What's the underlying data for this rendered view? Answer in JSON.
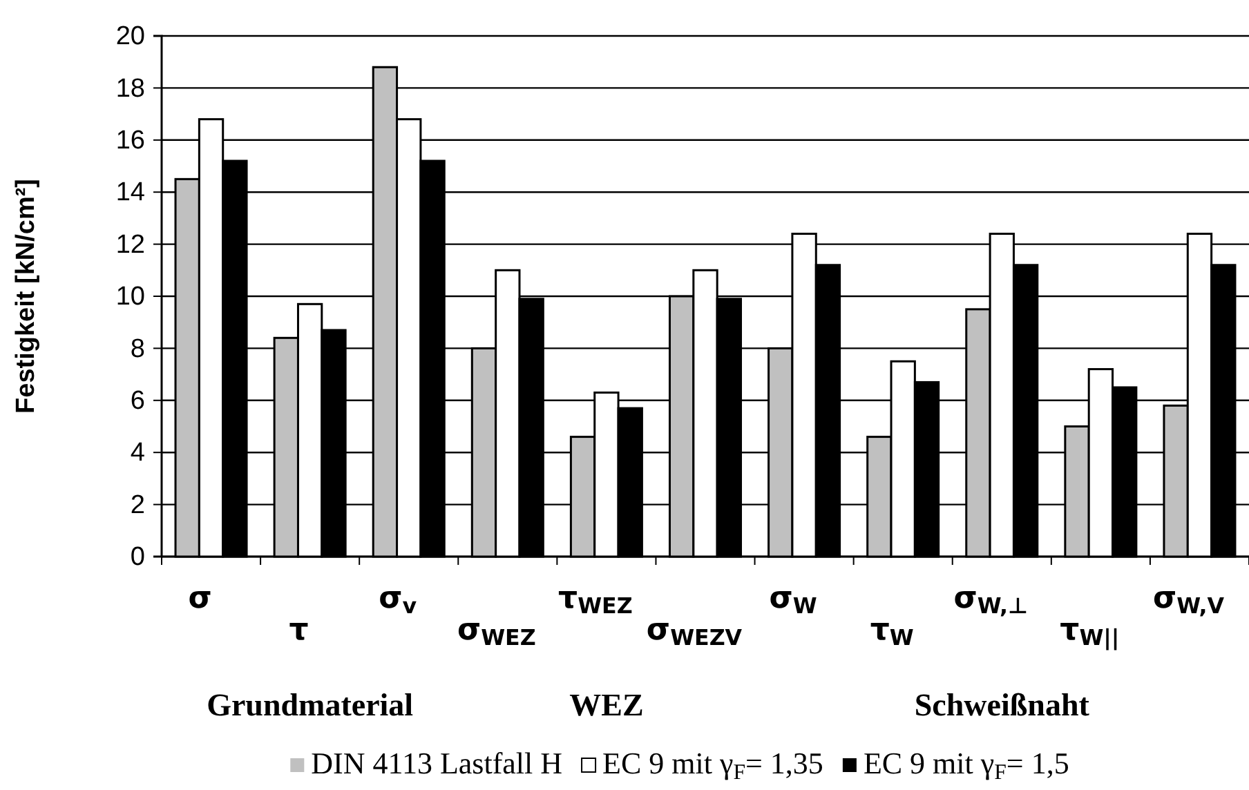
{
  "chart_data": {
    "type": "bar",
    "ylabel": "Festigkeit [kN/cm²]",
    "categories": [
      "σ",
      "τ",
      "σ$_{v}$",
      "σ$_{WEZ}$",
      "τ$_{WEZ}$",
      "σ$_{WEZV}$",
      "σ$_{W}$",
      "τ$_{W}$",
      "σ$_{W,⊥}$",
      "τ$_{W||}$",
      "σ$_{W,V}$"
    ],
    "series": [
      {
        "name": "DIN 4113 Lastfall H",
        "color": "#c0c0c0",
        "values": [
          14.5,
          8.4,
          18.8,
          8.0,
          4.6,
          10.0,
          8.0,
          4.6,
          9.5,
          5.0,
          5.8
        ]
      },
      {
        "name": "EC 9 mit γ$_{F}$= 1,35",
        "color": "#ffffff",
        "values": [
          16.8,
          9.7,
          16.8,
          11.0,
          6.3,
          11.0,
          12.4,
          7.5,
          12.4,
          7.2,
          12.4
        ]
      },
      {
        "name": "EC 9 mit γ$_{F}$= 1,5",
        "color": "#000000",
        "values": [
          15.2,
          8.7,
          15.2,
          9.9,
          5.7,
          9.9,
          11.2,
          6.7,
          11.2,
          6.5,
          11.2
        ]
      }
    ],
    "ylim": [
      0,
      20
    ],
    "yticks": [
      0,
      2,
      4,
      6,
      8,
      10,
      12,
      14,
      16,
      18,
      20
    ],
    "grid": "y",
    "legend": "bottom",
    "annotations": [
      "Grundmaterial",
      "WEZ",
      "Schweißnaht"
    ]
  }
}
